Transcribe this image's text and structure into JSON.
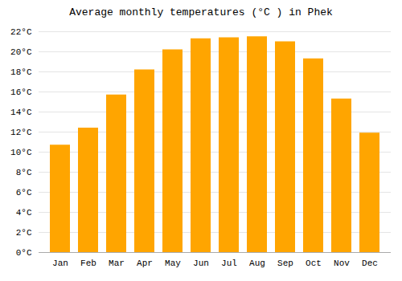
{
  "chart_data": {
    "type": "bar",
    "title": "Average monthly temperatures (°C ) in Phek",
    "categories": [
      "Jan",
      "Feb",
      "Mar",
      "Apr",
      "May",
      "Jun",
      "Jul",
      "Aug",
      "Sep",
      "Oct",
      "Nov",
      "Dec"
    ],
    "values": [
      10.7,
      12.4,
      15.7,
      18.2,
      20.2,
      21.3,
      21.4,
      21.5,
      21.0,
      19.3,
      15.3,
      11.9
    ],
    "color": "#FFA500",
    "ylim": [
      0,
      22
    ],
    "yticks": [
      {
        "value": 0,
        "label": "0°C"
      },
      {
        "value": 2,
        "label": "2°C"
      },
      {
        "value": 4,
        "label": "4°C"
      },
      {
        "value": 6,
        "label": "6°C"
      },
      {
        "value": 8,
        "label": "8°C"
      },
      {
        "value": 10,
        "label": "10°C"
      },
      {
        "value": 12,
        "label": "12°C"
      },
      {
        "value": 14,
        "label": "14°C"
      },
      {
        "value": 16,
        "label": "16°C"
      },
      {
        "value": 18,
        "label": "18°C"
      },
      {
        "value": 20,
        "label": "20°C"
      },
      {
        "value": 22,
        "label": "22°C"
      }
    ],
    "grid": true
  }
}
